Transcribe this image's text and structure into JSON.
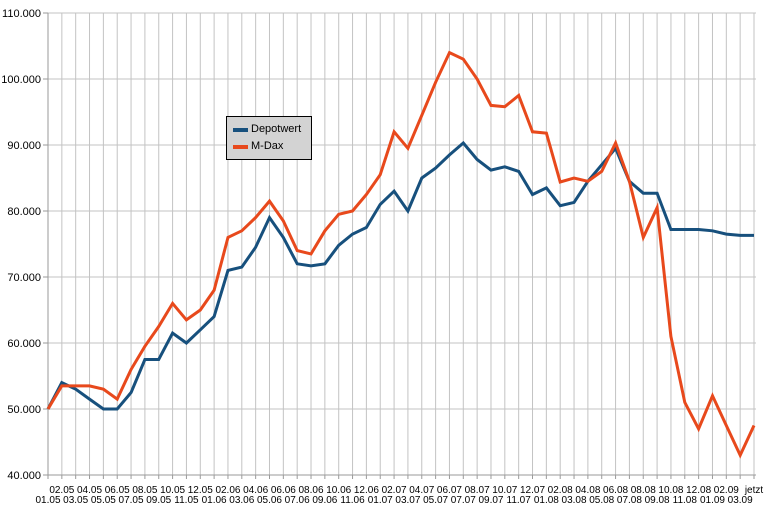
{
  "window": {
    "background": "#ffffff"
  },
  "legend": {
    "position": "inside-upper-left",
    "background": "#d3d3d3",
    "border_color": "#000000",
    "entries": [
      "Depotwert",
      "M-Dax"
    ]
  },
  "axes": {
    "grid_color": "#c3c3c3",
    "axis_color": "#9a9a9a",
    "label_color": "#000000"
  },
  "chart_data": {
    "type": "line",
    "title": "",
    "xlabel": "",
    "ylabel": "",
    "grid": true,
    "legend_position": "upper-left-inside",
    "ylim": [
      40000,
      110000
    ],
    "ytick_step": 10000,
    "ytick_labels": [
      "40.000",
      "50.000",
      "60.000",
      "70.000",
      "80.000",
      "90.000",
      "100.000",
      "110.000"
    ],
    "x": [
      "01.05",
      "02.05",
      "03.05",
      "04.05",
      "05.05",
      "06.05",
      "07.05",
      "08.05",
      "09.05",
      "10.05",
      "11.05",
      "12.05",
      "01.06",
      "02.06",
      "03.06",
      "04.06",
      "05.06",
      "06.06",
      "07.06",
      "08.06",
      "09.06",
      "10.06",
      "11.06",
      "12.06",
      "01.07",
      "02.07",
      "03.07",
      "04.07",
      "05.07",
      "06.07",
      "07.07",
      "08.07",
      "09.07",
      "10.07",
      "11.07",
      "12.07",
      "01.08",
      "02.08",
      "03.08",
      "04.08",
      "05.08",
      "06.08",
      "07.08",
      "08.08",
      "09.08",
      "10.08",
      "11.08",
      "12.08",
      "01.09",
      "02.09",
      "03.09",
      "jetzt"
    ],
    "series": [
      {
        "name": "Depotwert",
        "color": "#17507d",
        "values": [
          50000,
          54000,
          53000,
          51500,
          50000,
          50000,
          52500,
          57500,
          57500,
          61500,
          60000,
          62000,
          64000,
          71000,
          71500,
          74500,
          79000,
          76000,
          72000,
          71700,
          72000,
          74800,
          76500,
          77500,
          81000,
          83000,
          80000,
          85000,
          86500,
          88500,
          90300,
          87800,
          86200,
          86700,
          86000,
          82500,
          83500,
          80800,
          81300,
          84500,
          87000,
          89500,
          84500,
          82700,
          82700,
          77200,
          77200,
          77200,
          77000,
          76500,
          76300,
          76300
        ]
      },
      {
        "name": "M-Dax",
        "color": "#e8491c",
        "values": [
          50000,
          53500,
          53500,
          53500,
          53000,
          51500,
          56000,
          59500,
          62500,
          66000,
          63500,
          65000,
          68000,
          76000,
          77000,
          79000,
          81500,
          78500,
          74000,
          73500,
          77000,
          79500,
          80000,
          82500,
          85500,
          92000,
          89500,
          94500,
          99500,
          104000,
          103000,
          100000,
          96000,
          95800,
          97500,
          92000,
          91800,
          84400,
          85000,
          84500,
          86000,
          90300,
          84500,
          76000,
          80500,
          61000,
          51000,
          47000,
          52000,
          47500,
          43000,
          47500
        ]
      }
    ]
  }
}
